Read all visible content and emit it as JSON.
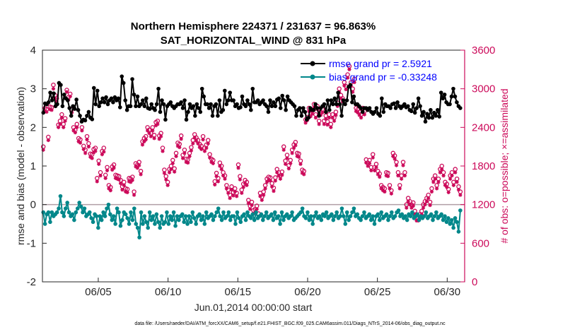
{
  "chart_data": {
    "type": "line",
    "title": "Northern Hemisphere 224371 / 231637 = 96.863%",
    "subtitle": "SAT_HORIZONTAL_WIND @ 831 hPa",
    "xlabel": "Jun.01,2014 00:00:00 start",
    "ylabel": "rmse and bias (model - observation)",
    "y2label": "# of obs: o=possible; ×=assimilated",
    "footnote": "data file: /Users/raeder/DAI/ATM_forcXX/CAM6_setup/f.e21.FHIST_BGC.f09_025.CAM6assim.011/Diags_NTrS_2014-06/obs_diag_output.nc",
    "xlim": [
      1,
      31.25
    ],
    "ylim": [
      -2,
      4
    ],
    "y2lim": [
      0,
      3600
    ],
    "xticks": [
      {
        "v": 5,
        "label": "06/05"
      },
      {
        "v": 10,
        "label": "06/10"
      },
      {
        "v": 15,
        "label": "06/15"
      },
      {
        "v": 20,
        "label": "06/20"
      },
      {
        "v": 25,
        "label": "06/25"
      },
      {
        "v": 30,
        "label": "06/30"
      }
    ],
    "yticks": [
      -2,
      -1,
      0,
      1,
      2,
      3,
      4
    ],
    "y2ticks": [
      0,
      600,
      1200,
      1800,
      2400,
      3000,
      3600
    ],
    "grid": false,
    "legend_position": "top-right",
    "colors": {
      "rmse": "#000000",
      "bias": "#00878a",
      "obs": "#cc0a5a",
      "zero": "#b09ea5"
    },
    "series": [
      {
        "name": "rmse grand pr = 2.5921",
        "axis": "left",
        "values": [
          2.38,
          2.62,
          2.6,
          2.65,
          2.9,
          2.7,
          2.88,
          2.55,
          2.6,
          3.15,
          3.1,
          2.55,
          2.85,
          2.75,
          2.7,
          2.5,
          2.3,
          2.55,
          2.48,
          2.72,
          2.45,
          2.3,
          2.15,
          2.2,
          2.18,
          2.3,
          2.4,
          2.25,
          2.21,
          3.02,
          2.6,
          2.95,
          2.55,
          2.65,
          2.75,
          2.65,
          2.78,
          2.6,
          2.7,
          2.75,
          2.65,
          2.78,
          2.7,
          2.75,
          2.52,
          3.32,
          3.15,
          2.7,
          2.45,
          2.55,
          2.55,
          3.25,
          2.85,
          2.55,
          2.8,
          2.55,
          2.6,
          2.7,
          2.55,
          2.75,
          2.5,
          2.48,
          2.6,
          2.5,
          2.45,
          2.6,
          3.0,
          2.4,
          2.7,
          2.6,
          2.2,
          2.55,
          2.6,
          2.65,
          2.55,
          2.5,
          2.55,
          2.6,
          2.6,
          2.65,
          2.5,
          2.7,
          2.2,
          2.4,
          2.6,
          2.5,
          2.55,
          2.3,
          2.6,
          2.5,
          2.4,
          3.0,
          2.8,
          2.6,
          2.6,
          2.5,
          2.6,
          2.3,
          2.55,
          2.6,
          2.3,
          2.7,
          2.4,
          2.45,
          2.95,
          2.6,
          2.7,
          2.9,
          2.7,
          2.7,
          2.55,
          2.6,
          2.5,
          2.52,
          2.8,
          2.6,
          2.55,
          2.7,
          2.6,
          2.45,
          3.0,
          2.65,
          2.65,
          2.7,
          2.6,
          2.65,
          2.7,
          2.6,
          2.55,
          2.4,
          2.7,
          2.55,
          2.65,
          2.55,
          2.72,
          2.75,
          2.5,
          2.82,
          2.7,
          2.45,
          2.8,
          2.7,
          2.65,
          2.6,
          2.55,
          2.3,
          2.45,
          2.5,
          2.3,
          2.5,
          2.4,
          2.2,
          2.25,
          2.5,
          2.45,
          2.45,
          2.6,
          2.5,
          2.3,
          2.5,
          2.55,
          2.6,
          2.4,
          2.7,
          2.45,
          2.7,
          2.6,
          2.75,
          2.6,
          2.9,
          2.6,
          2.3,
          2.7,
          2.6,
          2.7,
          3.05,
          3.1,
          2.65,
          2.8,
          2.6,
          2.6,
          2.55,
          2.5,
          2.4,
          2.5,
          2.5,
          2.45,
          2.5,
          2.4,
          2.35,
          2.4,
          2.5,
          2.35,
          2.3,
          2.75,
          2.4,
          2.6,
          2.55,
          2.55,
          2.5,
          2.6,
          2.62,
          2.5,
          2.65,
          2.55,
          2.5,
          2.55,
          2.6,
          2.52,
          2.55,
          2.45,
          2.42,
          2.6,
          2.38,
          2.5,
          2.75,
          2.55,
          2.3,
          2.4,
          2.15,
          2.35,
          2.25,
          2.45,
          2.25,
          2.38,
          2.3,
          2.45,
          2.28,
          2.9,
          2.75,
          2.85,
          2.65,
          2.6,
          2.6,
          2.8,
          3.0,
          2.8,
          2.65,
          2.55,
          2.5
        ]
      },
      {
        "name": "bias grand pr = -0.33248",
        "axis": "left",
        "values": [
          -0.2,
          -0.5,
          -0.25,
          -0.2,
          -0.45,
          -0.2,
          -0.3,
          -0.25,
          -0.2,
          -0.1,
          0.22,
          -0.2,
          -0.3,
          -0.1,
          0.05,
          -0.2,
          -0.3,
          -0.25,
          -0.4,
          -0.2,
          -0.1,
          0.05,
          -0.05,
          -0.2,
          -0.1,
          -0.3,
          -0.25,
          -0.2,
          -0.35,
          -0.45,
          -0.25,
          -0.3,
          -0.6,
          -0.3,
          -0.4,
          -0.2,
          -0.3,
          -0.1,
          0.0,
          -0.25,
          -0.4,
          -0.3,
          -0.5,
          -0.1,
          -0.2,
          -0.55,
          -0.4,
          -0.2,
          -0.25,
          -0.35,
          -0.5,
          -0.2,
          -0.4,
          -0.1,
          -0.5,
          -0.6,
          -0.85,
          -0.2,
          -0.5,
          -0.3,
          -0.45,
          -0.6,
          -0.2,
          -0.4,
          -0.3,
          -0.5,
          -0.25,
          -0.45,
          -0.6,
          -0.3,
          -0.5,
          -0.45,
          -0.2,
          -0.5,
          -0.3,
          -0.4,
          -0.2,
          -0.55,
          -0.3,
          -0.4,
          -0.3,
          -0.25,
          -0.45,
          -0.3,
          -0.5,
          -0.3,
          -0.45,
          -0.2,
          -0.35,
          -0.5,
          -0.3,
          -0.25,
          -0.4,
          -0.3,
          -0.5,
          -0.2,
          -0.35,
          -0.3,
          -0.25,
          -0.4,
          -0.3,
          -0.2,
          -0.1,
          -0.3,
          -0.4,
          -0.2,
          -0.35,
          -0.3,
          -0.2,
          -0.4,
          -0.3,
          -0.3,
          -0.5,
          -0.2,
          -0.35,
          -0.45,
          -0.3,
          -0.25,
          -0.4,
          -0.2,
          -0.3,
          -0.35,
          -0.25,
          -0.4,
          -0.2,
          -0.35,
          -0.3,
          -0.25,
          -0.4,
          -0.3,
          -0.2,
          -0.35,
          -0.3,
          -0.25,
          -0.4,
          -0.2,
          -0.35,
          -0.3,
          -0.5,
          -0.2,
          -0.4,
          -0.3,
          -0.25,
          -0.35,
          -0.3,
          -0.2,
          -0.4,
          -0.35,
          -0.3,
          -0.25,
          -0.2,
          -0.1,
          -0.3,
          -0.35,
          -0.2,
          -0.4,
          -0.3,
          -0.5,
          -0.3,
          -0.2,
          -0.35,
          -0.3,
          -0.4,
          -0.25,
          -0.3,
          -0.2,
          -0.35,
          -0.3,
          -0.25,
          -0.4,
          -0.3,
          -0.2,
          -0.35,
          -0.3,
          -0.1,
          -0.3,
          -0.5,
          -0.2,
          -0.4,
          -0.3,
          -0.2,
          -0.1,
          -0.3,
          -0.25,
          -0.35,
          -0.4,
          -0.3,
          -0.2,
          -0.35,
          -0.3,
          -0.25,
          -0.4,
          -0.3,
          -0.5,
          -0.3,
          -0.25,
          -0.4,
          -0.2,
          -0.35,
          -0.3,
          -0.25,
          -0.4,
          -0.3,
          -0.2,
          -0.35,
          -0.3,
          -0.2,
          -0.15,
          -0.3,
          -0.25,
          -0.35,
          -0.3,
          -0.4,
          -0.25,
          -0.3,
          -0.2,
          -0.35,
          -0.3,
          -0.25,
          -0.4,
          -0.3,
          -0.35,
          -0.3,
          -0.2,
          -0.35,
          -0.3,
          -0.25,
          -0.4,
          -0.3,
          -0.2,
          -0.35,
          -0.3,
          -0.25,
          -0.4,
          -0.3,
          -0.45,
          -0.35,
          -0.5,
          -0.4,
          -0.6,
          -0.35,
          -0.45,
          -0.7,
          -0.15
        ]
      },
      {
        "name": "possible",
        "axis": "right",
        "marker": "o",
        "values": [
          2100,
          2700,
          2680,
          2250,
          2720,
          2710,
          3060,
          2900,
          2850,
          2440,
          2500,
          2600,
          2450,
          2540,
          2980,
          2870,
          2920,
          2680,
          2400,
          2360,
          2450,
          2230,
          2210,
          2400,
          2110,
          2050,
          2260,
          2150,
          1990,
          1980,
          2060,
          2080,
          1610,
          1880,
          1700,
          2030,
          2080,
          1660,
          1780,
          1500,
          1470,
          1790,
          1820,
          1660,
          1650,
          1640,
          1580,
          1480,
          1550,
          1450,
          1440,
          1610,
          1600,
          1630,
          1400,
          1840,
          1820,
          1860,
          1720,
          2180,
          2230,
          2260,
          2400,
          2360,
          2310,
          2400,
          2280,
          2480,
          2500,
          2270,
          2310,
          2080,
          1740,
          1640,
          1550,
          1750,
          1800,
          1890,
          1760,
          2000,
          2160,
          2140,
          2270,
          1970,
          2050,
          1910,
          1900,
          2000,
          2090,
          2200,
          2290,
          2240,
          2200,
          2140,
          2110,
          2260,
          2080,
          2130,
          2200,
          1980,
          1910,
          1890,
          1560,
          1690,
          1610,
          1850,
          1800,
          1700,
          1650,
          1500,
          1430,
          1350,
          1480,
          1390,
          1450,
          1380,
          1820,
          1640,
          1430,
          1520,
          1580,
          1550,
          1270,
          1180,
          1240,
          1110,
          1130,
          1180,
          1060,
          1380,
          1320,
          1400,
          1500,
          1600,
          1630,
          1620,
          1530,
          1460,
          1620,
          1750,
          1700,
          1650,
          1710,
          2100,
          1880,
          1970,
          1810,
          1890,
          2050,
          2130,
          2170,
          2000,
          1990,
          1880,
          1740,
          1720,
          2520,
          2560,
          2700,
          2620,
          2660,
          2760,
          2600,
          2730,
          2500,
          2640,
          2680,
          2500,
          2580,
          2490,
          2600,
          2450,
          2600,
          2550,
          2640,
          2780,
          3000,
          2900,
          2850,
          3100,
          3040,
          3220,
          3350,
          3100,
          3000,
          3150,
          2700,
          2680,
          2640,
          2600,
          2700,
          2650,
          1900,
          1850,
          1890,
          1780,
          1980,
          1780,
          1830,
          1720,
          1680,
          1500,
          1470,
          1450,
          1700,
          1690,
          1500,
          1420,
          2000,
          1960,
          1860,
          1700,
          1500,
          1650,
          1860,
          1700,
          1200,
          1300,
          1250,
          1200,
          1230,
          1100,
          1000,
          1000,
          1050,
          1100,
          1200,
          1250,
          1300,
          1350,
          1240,
          1450,
          1600,
          1650,
          1500,
          1600,
          1750,
          1800,
          1700,
          1550,
          1520,
          1440,
          1650,
          1700,
          1550,
          1750,
          1600,
          1480,
          1400
        ]
      },
      {
        "name": "assimilated",
        "axis": "right",
        "marker": "*",
        "values": [
          2050,
          2650,
          2640,
          2200,
          2680,
          2670,
          3000,
          2850,
          2800,
          2400,
          2450,
          2550,
          2400,
          2500,
          2950,
          2830,
          2880,
          2630,
          2350,
          2320,
          2400,
          2180,
          2160,
          2350,
          2060,
          2000,
          2210,
          2100,
          1940,
          1920,
          2010,
          2030,
          1560,
          1830,
          1650,
          1980,
          2020,
          1610,
          1730,
          1450,
          1420,
          1740,
          1770,
          1610,
          1600,
          1590,
          1530,
          1430,
          1500,
          1400,
          1390,
          1560,
          1550,
          1580,
          1350,
          1790,
          1770,
          1810,
          1670,
          2130,
          2180,
          2210,
          2350,
          2310,
          2260,
          2350,
          2230,
          2430,
          2450,
          2220,
          2260,
          2030,
          1690,
          1590,
          1500,
          1700,
          1750,
          1840,
          1710,
          1950,
          2110,
          2090,
          2220,
          1920,
          2000,
          1860,
          1850,
          1950,
          2040,
          2150,
          2240,
          2190,
          2150,
          2090,
          2060,
          2210,
          2030,
          2080,
          2150,
          1930,
          1860,
          1840,
          1510,
          1640,
          1560,
          1800,
          1750,
          1650,
          1600,
          1450,
          1380,
          1300,
          1430,
          1340,
          1400,
          1330,
          1770,
          1590,
          1380,
          1470,
          1530,
          1500,
          1220,
          1130,
          1190,
          1060,
          1080,
          1130,
          1010,
          1330,
          1270,
          1350,
          1450,
          1550,
          1580,
          1570,
          1480,
          1410,
          1570,
          1700,
          1650,
          1600,
          1660,
          2050,
          1830,
          1920,
          1760,
          1840,
          2000,
          2080,
          2120,
          1950,
          1940,
          1830,
          1690,
          1670,
          2470,
          2510,
          2650,
          2570,
          2610,
          2710,
          2550,
          2680,
          2450,
          2590,
          2630,
          2450,
          2530,
          2440,
          2550,
          2400,
          2550,
          2500,
          2590,
          2730,
          2950,
          2850,
          2800,
          3050,
          2990,
          3170,
          3300,
          3050,
          2950,
          3100,
          2650,
          2630,
          2590,
          2550,
          2650,
          2600,
          1850,
          1800,
          1840,
          1730,
          1930,
          1730,
          1780,
          1670,
          1630,
          1450,
          1420,
          1400,
          1650,
          1640,
          1450,
          1370,
          1950,
          1910,
          1810,
          1650,
          1450,
          1600,
          1810,
          1650,
          1150,
          1250,
          1200,
          1150,
          1180,
          1050,
          950,
          950,
          1000,
          1050,
          1150,
          1200,
          1250,
          1300,
          1190,
          1400,
          1550,
          1600,
          1450,
          1550,
          1700,
          1750,
          1650,
          1500,
          1470,
          1390,
          1600,
          1650,
          1500,
          1700,
          1550,
          1430,
          1350
        ]
      }
    ]
  }
}
